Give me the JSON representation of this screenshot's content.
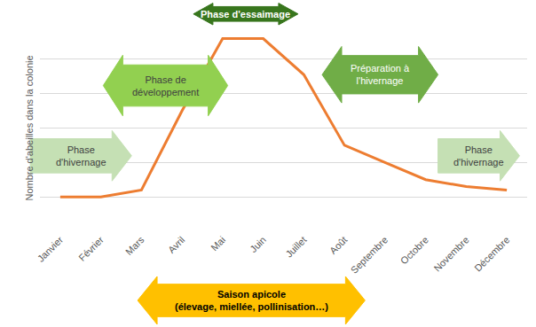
{
  "chart_data": {
    "type": "line",
    "y_label": "Nombre d'abeilles dans la colonie",
    "categories": [
      "Janvier",
      "Février",
      "Mars",
      "Avril",
      "Mai",
      "Juin",
      "Juillet",
      "Août",
      "Septembre",
      "Octobre",
      "Novembre",
      "Décembre"
    ],
    "values": [
      1.0,
      1.0,
      1.2,
      3.5,
      5.6,
      5.6,
      4.55,
      2.5,
      2.0,
      1.5,
      1.3,
      1.2
    ],
    "color": "#ed7d31",
    "ylim": [
      0,
      6
    ],
    "yticks": [
      0,
      1,
      2,
      3,
      4,
      5,
      6
    ],
    "grid": true,
    "tick_labels": "x",
    "annotations": [
      "Phase\nd'hivernage",
      "Phase de\ndéveloppement",
      "Phase d'essaimage",
      "Préparation à\nl'hivernage",
      "Phase\nd'hivernage",
      "Saison apicole\n(élevage, miellée, pollinisation…)"
    ]
  }
}
